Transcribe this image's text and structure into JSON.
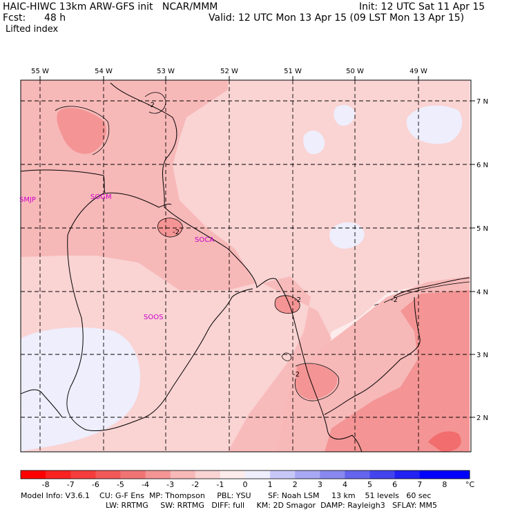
{
  "header": {
    "model_line": "HAIC-HIWC 13km ARW-GFS init   NCAR/MMM",
    "init_line": "Init: 12 UTC Sat 11 Apr 15",
    "fcst_label": "Fcst:",
    "fcst_value": "48 h",
    "valid_line": "Valid: 12 UTC Mon 13 Apr 15 (09 LST Mon 13 Apr 15)",
    "field_name": "Lifted index"
  },
  "map": {
    "lon_labels": [
      "55 W",
      "54 W",
      "53 W",
      "52 W",
      "51 W",
      "50 W",
      "49 W"
    ],
    "lat_labels": [
      "7 N",
      "6 N",
      "5 N",
      "4 N",
      "3 N",
      "2 N"
    ],
    "stations": [
      "SMJP",
      "SOGM",
      "SOCA",
      "SOOS"
    ],
    "contour_labels": [
      "-2",
      "-2",
      "-2",
      "-2",
      "-2"
    ],
    "colors": {
      "li_m3": "#f49494",
      "li_m2": "#f7b8b8",
      "li_m1": "#fad3d3",
      "li_0": "#fdecec",
      "li_p1": "#eeeefc",
      "station": "#cc00cc"
    }
  },
  "colorbar": {
    "labels": [
      "-8",
      "-7",
      "-6",
      "-5",
      "-4",
      "-3",
      "-2",
      "-1",
      "0",
      "1",
      "2",
      "3",
      "4",
      "5",
      "6",
      "7",
      "8"
    ],
    "unit": "°C",
    "colors": [
      "#ff0000",
      "#fb2222",
      "#f63c3c",
      "#f35858",
      "#f17474",
      "#f49494",
      "#f7b8b8",
      "#fad3d3",
      "#fdecec",
      "#eeeefc",
      "#c8c8f8",
      "#a8a8f4",
      "#8888f0",
      "#6464ee",
      "#4444ee",
      "#2222f2",
      "#0000ff"
    ]
  },
  "footer": {
    "line1": "Model Info: V3.6.1    CU: G-F Ens  MP: Thompson     PBL: YSU       SF: Noah LSM     13 km    51 levels   60 sec",
    "line2": "LW: RRTMG     SW: RRTMG   DIFF: full     KM: 2D Smagor  DAMP: Rayleigh3   SFLAY: MM5"
  }
}
